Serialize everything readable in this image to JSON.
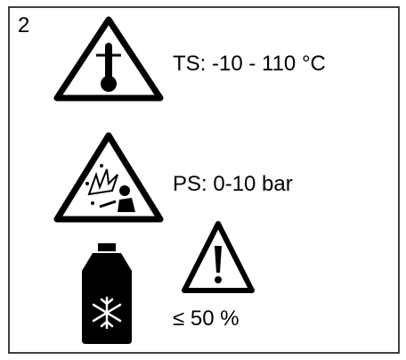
{
  "label": {
    "number": "2",
    "temperature": "TS: -10 - 110 °C",
    "pressure": "PS: 0-10 bar",
    "fill": "≤ 50 %"
  }
}
